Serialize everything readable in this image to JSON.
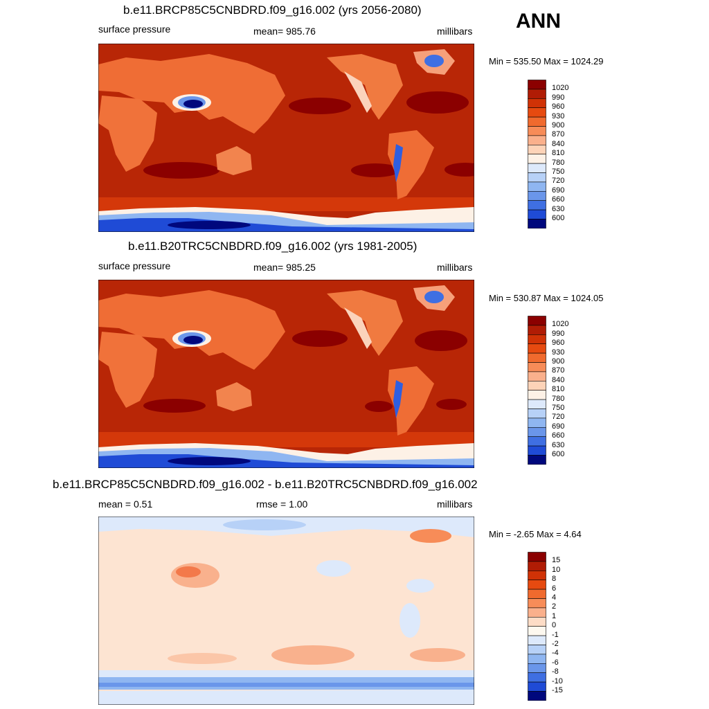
{
  "season": "ANN",
  "units_label": "millibars",
  "panels": [
    {
      "title": "b.e11.BRCP85C5CNBDRD.f09_g16.002 (yrs 2056-2080)",
      "left_label": "surface pressure",
      "center_label": "mean= 985.76",
      "minmax": "Min = 535.50 Max = 1024.29",
      "colorbar": {
        "labels": [
          "1020",
          "990",
          "960",
          "930",
          "900",
          "870",
          "840",
          "810",
          "780",
          "750",
          "720",
          "690",
          "660",
          "630",
          "600"
        ],
        "colors": [
          "#8b0000",
          "#b01c05",
          "#d03206",
          "#e64a10",
          "#f06a2e",
          "#f78c58",
          "#fab08c",
          "#fdd3b8",
          "#fdf1e6",
          "#dde9fb",
          "#b7d1f7",
          "#8fb6f1",
          "#6a96ea",
          "#3f6fe2",
          "#1f4bd6",
          "#00087d"
        ]
      }
    },
    {
      "title": "b.e11.B20TRC5CNBDRD.f09_g16.002 (yrs 1981-2005)",
      "left_label": "surface pressure",
      "center_label": "mean= 985.25",
      "minmax": "Min = 530.87 Max = 1024.05",
      "colorbar": {
        "labels": [
          "1020",
          "990",
          "960",
          "930",
          "900",
          "870",
          "840",
          "810",
          "780",
          "750",
          "720",
          "690",
          "660",
          "630",
          "600"
        ],
        "colors": [
          "#8b0000",
          "#b01c05",
          "#d03206",
          "#e64a10",
          "#f06a2e",
          "#f78c58",
          "#fab08c",
          "#fdd3b8",
          "#fdf1e6",
          "#dde9fb",
          "#b7d1f7",
          "#8fb6f1",
          "#6a96ea",
          "#3f6fe2",
          "#1f4bd6",
          "#00087d"
        ]
      }
    },
    {
      "title": "b.e11.BRCP85C5CNBDRD.f09_g16.002 - b.e11.B20TRC5CNBDRD.f09_g16.002",
      "left_label": "mean =   0.51",
      "center_label": "rmse =   1.00",
      "minmax": "Min =  -2.65 Max =   4.64",
      "colorbar": {
        "labels": [
          "15",
          "10",
          "8",
          "6",
          "4",
          "2",
          "1",
          "0",
          "-1",
          "-2",
          "-4",
          "-6",
          "-8",
          "-10",
          "-15"
        ],
        "colors": [
          "#8b0000",
          "#b01c05",
          "#d03206",
          "#e64a10",
          "#f06a2e",
          "#f78c58",
          "#fab08c",
          "#fddcc6",
          "#fdf8ef",
          "#dde9fb",
          "#b7d1f7",
          "#8fb6f1",
          "#6a96ea",
          "#3f6fe2",
          "#1f4bd6",
          "#00087d"
        ]
      }
    }
  ]
}
